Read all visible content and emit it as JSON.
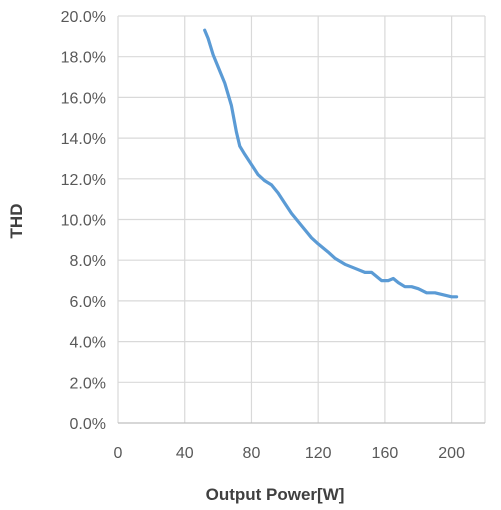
{
  "chart_data": {
    "type": "line",
    "title": "",
    "xlabel": "Output Power[W]",
    "ylabel": "THD",
    "xlim": [
      0,
      220
    ],
    "ylim": [
      0,
      20
    ],
    "x_ticks": [
      0,
      40,
      80,
      120,
      160,
      200
    ],
    "x_tick_labels": [
      "0",
      "40",
      "80",
      "120",
      "160",
      "200"
    ],
    "y_ticks": [
      0,
      2,
      4,
      6,
      8,
      10,
      12,
      14,
      16,
      18,
      20
    ],
    "y_tick_labels": [
      "0.0%",
      "2.0%",
      "4.0%",
      "6.0%",
      "8.0%",
      "10.0%",
      "12.0%",
      "14.0%",
      "16.0%",
      "18.0%",
      "20.0%"
    ],
    "x_grid_values": [
      0,
      40,
      80,
      120,
      160,
      200,
      220
    ],
    "grid": true,
    "legend": "none",
    "series": [
      {
        "color": "#5b9bd5",
        "x": [
          52,
          54,
          57,
          60,
          64,
          68,
          71,
          73,
          76,
          80,
          84,
          88,
          92,
          96,
          100,
          104,
          110,
          116,
          120,
          126,
          130,
          136,
          142,
          148,
          152,
          155,
          158,
          162,
          165,
          168,
          172,
          176,
          180,
          185,
          190,
          195,
          200,
          203
        ],
        "y": [
          19.3,
          18.9,
          18.1,
          17.5,
          16.7,
          15.6,
          14.3,
          13.6,
          13.2,
          12.7,
          12.2,
          11.9,
          11.7,
          11.3,
          10.8,
          10.3,
          9.7,
          9.1,
          8.8,
          8.4,
          8.1,
          7.8,
          7.6,
          7.4,
          7.4,
          7.2,
          7.0,
          7.0,
          7.1,
          6.9,
          6.7,
          6.7,
          6.6,
          6.4,
          6.4,
          6.3,
          6.2,
          6.2
        ]
      }
    ]
  }
}
